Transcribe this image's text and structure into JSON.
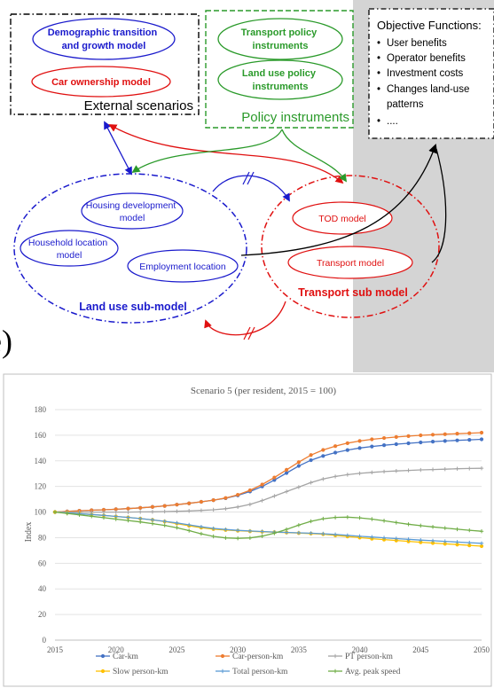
{
  "diagram": {
    "external_box": {
      "items": [
        "Demographic transition",
        "and growth model",
        "Car ownership model"
      ],
      "label": "External scenarios"
    },
    "policy_box": {
      "items": [
        "Transport policy",
        "instruments",
        "Land use policy",
        "instruments"
      ],
      "label": "Policy instruments"
    },
    "objectives": {
      "title": "Objective Functions:",
      "items": [
        "User benefits",
        "Operator benefits",
        "Investment costs",
        "Changes land-use",
        "patterns",
        "...."
      ]
    },
    "land_use": {
      "label": "Land use sub-model",
      "items": [
        "Housing development",
        "model",
        "Household location",
        "model",
        "Employment location"
      ]
    },
    "transport": {
      "label": "Transport sub  model",
      "items": [
        "TOD model",
        "Transport model"
      ]
    },
    "panel_letter": "e)"
  },
  "chart_data": {
    "type": "line",
    "title": "Scenario  5 (per resident, 2015 = 100)",
    "xlabel": "",
    "ylabel": "Index",
    "xlim": [
      2015,
      2050
    ],
    "ylim": [
      0,
      180
    ],
    "xticks": [
      "2015",
      "2020",
      "2025",
      "2030",
      "2035",
      "2040",
      "2045",
      "2050"
    ],
    "yticks": [
      "0",
      "20",
      "40",
      "60",
      "80",
      "100",
      "120",
      "140",
      "160",
      "180"
    ],
    "grid": true,
    "legend_position": "bottom",
    "x": [
      2015,
      2016,
      2017,
      2018,
      2019,
      2020,
      2021,
      2022,
      2023,
      2024,
      2025,
      2026,
      2027,
      2028,
      2029,
      2030,
      2031,
      2032,
      2033,
      2034,
      2035,
      2036,
      2037,
      2038,
      2039,
      2040,
      2041,
      2042,
      2043,
      2044,
      2045,
      2046,
      2047,
      2048,
      2049,
      2050
    ],
    "series": [
      {
        "name": "Car-km",
        "color": "#4472c4",
        "marker": "circle",
        "values": [
          100,
          100.5,
          101,
          101.4,
          101.8,
          102.2,
          102.7,
          103.3,
          104,
          104.8,
          105.8,
          106.8,
          108,
          109.3,
          110.8,
          113,
          116,
          120,
          125,
          130.5,
          136,
          140.5,
          143.8,
          146.4,
          148.4,
          150,
          151.2,
          152.2,
          153,
          153.7,
          154.4,
          155,
          155.5,
          156,
          156.4,
          156.8
        ]
      },
      {
        "name": "Car-person-km",
        "color": "#ed7d31",
        "marker": "circle",
        "values": [
          100,
          100.5,
          101,
          101.4,
          101.8,
          102.2,
          102.7,
          103.3,
          104,
          104.8,
          105.8,
          106.8,
          108,
          109.3,
          111,
          113.5,
          117,
          121.5,
          127,
          133,
          139,
          144.5,
          148.5,
          151.5,
          153.8,
          155.5,
          156.8,
          157.8,
          158.6,
          159.3,
          159.9,
          160.4,
          160.8,
          161.2,
          161.6,
          162
        ]
      },
      {
        "name": "PT person-km",
        "color": "#a5a5a5",
        "marker": "plus",
        "values": [
          100,
          100,
          100,
          100,
          100,
          100,
          100,
          100.1,
          100.2,
          100.4,
          100.6,
          100.9,
          101.3,
          101.8,
          102.6,
          104,
          106,
          109,
          112.5,
          116,
          119.5,
          123,
          125.8,
          127.8,
          129.2,
          130.2,
          131,
          131.6,
          132.1,
          132.5,
          132.9,
          133.2,
          133.5,
          133.8,
          134,
          134.2
        ]
      },
      {
        "name": "Slow person-km",
        "color": "#ffc000",
        "marker": "circle",
        "values": [
          100,
          99.4,
          98.8,
          98.1,
          97.4,
          96.6,
          95.8,
          94.9,
          93.9,
          92.6,
          91,
          89.3,
          87.8,
          86.7,
          86,
          85.4,
          85,
          84.6,
          84.3,
          84,
          83.6,
          83.2,
          82.7,
          81.8,
          80.9,
          80,
          79.2,
          78.5,
          77.8,
          77.1,
          76.4,
          75.8,
          75.2,
          74.6,
          74,
          73.4
        ]
      },
      {
        "name": "Total person-km",
        "color": "#5b9bd5",
        "marker": "plus",
        "values": [
          100,
          99.4,
          98.8,
          98.1,
          97.4,
          96.6,
          95.8,
          94.9,
          93.9,
          92.8,
          91.5,
          90,
          88.5,
          87.2,
          86.4,
          85.7,
          85.2,
          84.8,
          84.4,
          84.1,
          83.8,
          83.5,
          83.1,
          82.5,
          81.8,
          81.1,
          80.5,
          79.9,
          79.3,
          78.7,
          78.1,
          77.6,
          77.1,
          76.6,
          76.1,
          75.6
        ]
      },
      {
        "name": "Avg. peak speed",
        "color": "#70ad47",
        "marker": "plus",
        "values": [
          100,
          98.9,
          97.8,
          96.7,
          95.6,
          94.5,
          93.4,
          92.3,
          91,
          89.6,
          87.8,
          85.5,
          83,
          81,
          79.8,
          79.5,
          79.8,
          81.2,
          83.5,
          86.5,
          89.8,
          92.8,
          94.8,
          95.8,
          96,
          95.5,
          94.5,
          93.2,
          91.8,
          90.5,
          89.4,
          88.4,
          87.5,
          86.6,
          85.8,
          85
        ]
      }
    ]
  }
}
